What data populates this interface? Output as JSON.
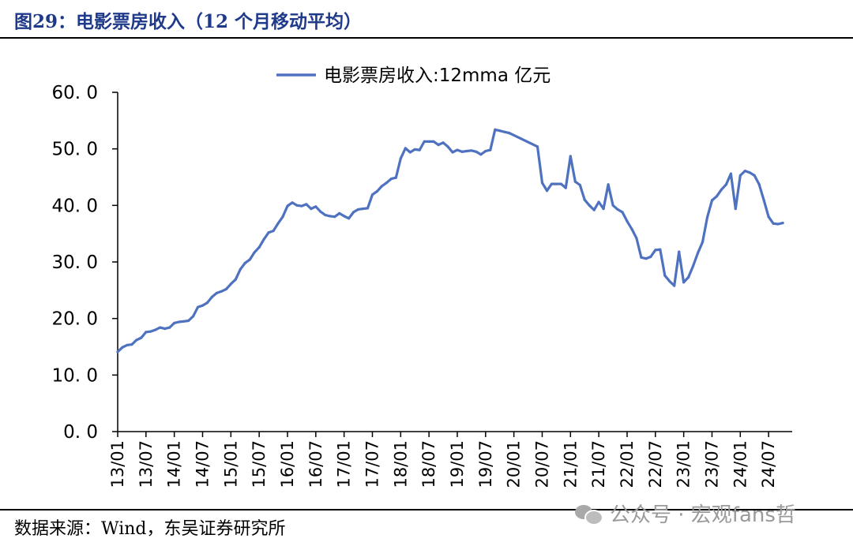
{
  "figure": {
    "title": "图29：电影票房收入（12 个月移动平均）",
    "source": "数据来源：Wind，东吴证券研究所",
    "watermark": "公众号 · 宏观fans哲"
  },
  "chart_data": {
    "type": "line",
    "title": "",
    "xlabel": "",
    "ylabel": "",
    "ylim": [
      0,
      60
    ],
    "yticks": [
      0,
      10,
      20,
      30,
      40,
      50,
      60
    ],
    "ytick_labels": [
      "0. 0",
      "10. 0",
      "20. 0",
      "30. 0",
      "40. 0",
      "50. 0",
      "60. 0"
    ],
    "grid": false,
    "legend_position": "top-center",
    "xtick_labels": [
      "13/01",
      "13/07",
      "14/01",
      "14/07",
      "15/01",
      "15/07",
      "16/01",
      "16/07",
      "17/01",
      "17/07",
      "18/01",
      "18/07",
      "19/01",
      "19/07",
      "20/01",
      "20/07",
      "21/01",
      "21/07",
      "22/01",
      "22/07",
      "23/01",
      "23/07",
      "24/01",
      "24/07"
    ],
    "series": [
      {
        "name": "电影票房收入:12mma 亿元",
        "color": "#4f72c0",
        "points": [
          [
            "2013-01",
            14.1
          ],
          [
            "2013-02",
            14.9
          ],
          [
            "2013-03",
            15.3
          ],
          [
            "2013-04",
            15.4
          ],
          [
            "2013-05",
            16.2
          ],
          [
            "2013-06",
            16.6
          ],
          [
            "2013-07",
            17.6
          ],
          [
            "2013-08",
            17.7
          ],
          [
            "2013-09",
            18.0
          ],
          [
            "2013-10",
            18.4
          ],
          [
            "2013-11",
            18.2
          ],
          [
            "2013-12",
            18.4
          ],
          [
            "2014-01",
            19.2
          ],
          [
            "2014-02",
            19.4
          ],
          [
            "2014-03",
            19.5
          ],
          [
            "2014-04",
            19.6
          ],
          [
            "2014-05",
            20.4
          ],
          [
            "2014-06",
            22.0
          ],
          [
            "2014-07",
            22.3
          ],
          [
            "2014-08",
            22.8
          ],
          [
            "2014-09",
            23.8
          ],
          [
            "2014-10",
            24.5
          ],
          [
            "2014-11",
            24.8
          ],
          [
            "2014-12",
            25.2
          ],
          [
            "2015-01",
            26.1
          ],
          [
            "2015-02",
            26.9
          ],
          [
            "2015-03",
            28.7
          ],
          [
            "2015-04",
            29.8
          ],
          [
            "2015-05",
            30.4
          ],
          [
            "2015-06",
            31.7
          ],
          [
            "2015-07",
            32.6
          ],
          [
            "2015-08",
            34.0
          ],
          [
            "2015-09",
            35.2
          ],
          [
            "2015-10",
            35.5
          ],
          [
            "2015-11",
            36.8
          ],
          [
            "2015-12",
            38.0
          ],
          [
            "2016-01",
            39.9
          ],
          [
            "2016-02",
            40.5
          ],
          [
            "2016-03",
            40.0
          ],
          [
            "2016-04",
            39.9
          ],
          [
            "2016-05",
            40.2
          ],
          [
            "2016-06",
            39.4
          ],
          [
            "2016-07",
            39.8
          ],
          [
            "2016-08",
            38.9
          ],
          [
            "2016-09",
            38.3
          ],
          [
            "2016-10",
            38.1
          ],
          [
            "2016-11",
            38.0
          ],
          [
            "2016-12",
            38.6
          ],
          [
            "2017-01",
            38.1
          ],
          [
            "2017-02",
            37.7
          ],
          [
            "2017-03",
            38.8
          ],
          [
            "2017-04",
            39.3
          ],
          [
            "2017-05",
            39.4
          ],
          [
            "2017-06",
            39.5
          ],
          [
            "2017-07",
            41.9
          ],
          [
            "2017-08",
            42.5
          ],
          [
            "2017-09",
            43.4
          ],
          [
            "2017-10",
            44.0
          ],
          [
            "2017-11",
            44.7
          ],
          [
            "2017-12",
            44.9
          ],
          [
            "2018-01",
            48.3
          ],
          [
            "2018-02",
            50.1
          ],
          [
            "2018-03",
            49.4
          ],
          [
            "2018-04",
            49.9
          ],
          [
            "2018-05",
            49.8
          ],
          [
            "2018-06",
            51.3
          ],
          [
            "2018-07",
            51.3
          ],
          [
            "2018-08",
            51.3
          ],
          [
            "2018-09",
            50.7
          ],
          [
            "2018-10",
            51.1
          ],
          [
            "2018-11",
            50.4
          ],
          [
            "2018-12",
            49.4
          ],
          [
            "2019-01",
            49.8
          ],
          [
            "2019-02",
            49.5
          ],
          [
            "2019-03",
            49.6
          ],
          [
            "2019-04",
            49.7
          ],
          [
            "2019-05",
            49.5
          ],
          [
            "2019-06",
            49.0
          ],
          [
            "2019-07",
            49.6
          ],
          [
            "2019-08",
            49.8
          ],
          [
            "2019-09",
            53.4
          ],
          [
            "2019-10",
            53.2
          ],
          [
            "2019-11",
            53.0
          ],
          [
            "2019-12",
            52.8
          ],
          [
            "2020-06",
            50.4
          ],
          [
            "2020-07",
            44.0
          ],
          [
            "2020-08",
            42.6
          ],
          [
            "2020-09",
            43.8
          ],
          [
            "2020-10",
            43.8
          ],
          [
            "2020-11",
            43.8
          ],
          [
            "2020-12",
            43.1
          ],
          [
            "2021-01",
            48.7
          ],
          [
            "2021-02",
            44.2
          ],
          [
            "2021-03",
            43.6
          ],
          [
            "2021-04",
            41.0
          ],
          [
            "2021-05",
            40.0
          ],
          [
            "2021-06",
            39.2
          ],
          [
            "2021-07",
            40.6
          ],
          [
            "2021-08",
            39.4
          ],
          [
            "2021-09",
            43.7
          ],
          [
            "2021-10",
            40.0
          ],
          [
            "2021-11",
            39.3
          ],
          [
            "2021-12",
            38.8
          ],
          [
            "2022-01",
            37.2
          ],
          [
            "2022-02",
            35.8
          ],
          [
            "2022-03",
            34.2
          ],
          [
            "2022-04",
            30.8
          ],
          [
            "2022-05",
            30.6
          ],
          [
            "2022-06",
            30.9
          ],
          [
            "2022-07",
            32.1
          ],
          [
            "2022-08",
            32.2
          ],
          [
            "2022-09",
            27.6
          ],
          [
            "2022-10",
            26.6
          ],
          [
            "2022-11",
            25.8
          ],
          [
            "2022-12",
            31.8
          ],
          [
            "2023-01",
            26.4
          ],
          [
            "2023-02",
            27.3
          ],
          [
            "2023-03",
            29.3
          ],
          [
            "2023-04",
            31.6
          ],
          [
            "2023-05",
            33.5
          ],
          [
            "2023-06",
            37.9
          ],
          [
            "2023-07",
            40.9
          ],
          [
            "2023-08",
            41.6
          ],
          [
            "2023-09",
            42.8
          ],
          [
            "2023-10",
            43.7
          ],
          [
            "2023-11",
            45.6
          ],
          [
            "2023-12",
            39.4
          ],
          [
            "2024-01",
            45.3
          ],
          [
            "2024-02",
            46.1
          ],
          [
            "2024-03",
            45.8
          ],
          [
            "2024-04",
            45.3
          ],
          [
            "2024-05",
            43.7
          ],
          [
            "2024-06",
            40.9
          ],
          [
            "2024-07",
            38.0
          ],
          [
            "2024-08",
            36.8
          ],
          [
            "2024-09",
            36.7
          ],
          [
            "2024-10",
            36.9
          ]
        ]
      }
    ]
  }
}
